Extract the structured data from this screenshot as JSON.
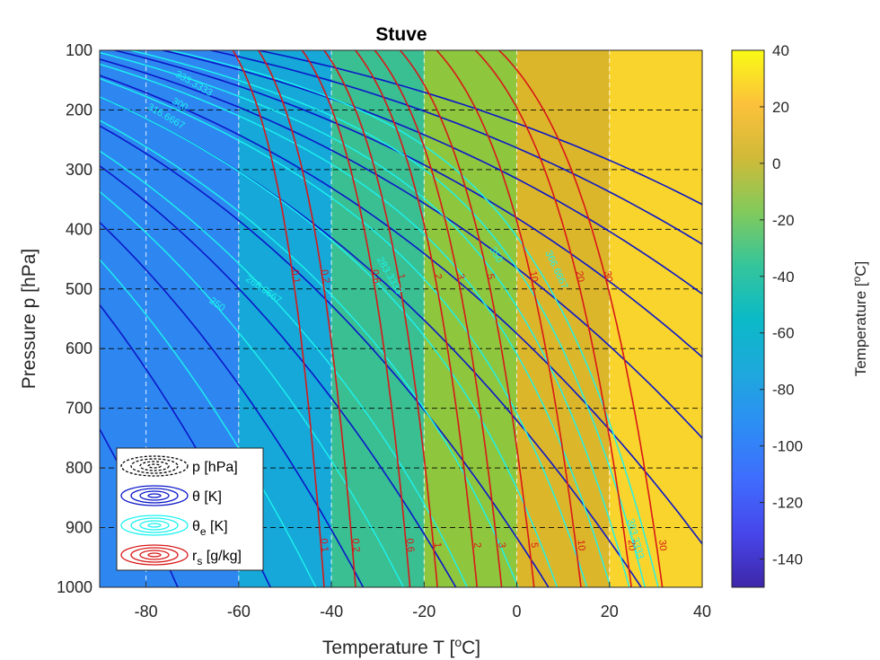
{
  "chart_data": {
    "type": "contour",
    "title": "Stuve",
    "xlabel": "Temperature T [",
    "xlabel_sup": "o",
    "xlabel_end": "C]",
    "ylabel": "Pressure p [hPa]",
    "colorbar_label": "Temperature [",
    "colorbar_label_sup": "o",
    "colorbar_label_end": "C]",
    "xlim": [
      -90,
      40
    ],
    "ylim": [
      100,
      1000
    ],
    "y_reversed": true,
    "grid": true,
    "xticks": [
      -80,
      -60,
      -40,
      -20,
      0,
      20,
      40
    ],
    "yticks": [
      100,
      200,
      300,
      400,
      500,
      600,
      700,
      800,
      900,
      1000
    ],
    "colorbar": {
      "range": [
        -150,
        40
      ],
      "ticks": [
        40,
        20,
        0,
        -20,
        -40,
        -60,
        -80,
        -100,
        -120,
        -140
      ]
    },
    "background_bands": [
      {
        "from": -90,
        "to": -60,
        "color": "#2e87f0"
      },
      {
        "from": -60,
        "to": -40,
        "color": "#16a8d8"
      },
      {
        "from": -40,
        "to": -20,
        "color": "#3abf92"
      },
      {
        "from": -20,
        "to": 0,
        "color": "#8ec63e"
      },
      {
        "from": 0,
        "to": 20,
        "color": "#dcb62a"
      },
      {
        "from": 20,
        "to": 40,
        "color": "#f9d42c"
      }
    ],
    "series": [
      {
        "name": "p [hPa]",
        "color": "#000000",
        "style": "dashed"
      },
      {
        "name": "θ [K]",
        "color": "#0b17c8",
        "style": "solid",
        "values": [
          200,
          220,
          240,
          260,
          280,
          300,
          320,
          340,
          360,
          380,
          400,
          420
        ]
      },
      {
        "name": "θe [K]",
        "color": "#1cf2ef",
        "style": "solid",
        "values": [
          230,
          250,
          266.6667,
          283.3333,
          300,
          316.6667,
          333.3333,
          350,
          366.6667,
          383.3333
        ]
      },
      {
        "name": "rs [g/kg]",
        "color": "#d81818",
        "style": "solid",
        "values": [
          0.1,
          0.2,
          0.6,
          1,
          2,
          3,
          5,
          10,
          20,
          30
        ]
      }
    ],
    "contour_labels": {
      "rs_top": [
        "0.1",
        "0.2",
        "0.6",
        "1",
        "2",
        "3",
        "5",
        "10",
        "20",
        "30"
      ],
      "rs_bottom": [
        "0.1",
        "0.2",
        "0.6",
        "1",
        "2",
        "3",
        "5",
        "10",
        "20",
        "30"
      ],
      "theta_e": [
        "300",
        "316.6667",
        "333.3333",
        "250",
        "266.6667",
        "283.3333",
        "350",
        "366.6667",
        "383.3333"
      ]
    },
    "legend_position": "bottom-left"
  }
}
